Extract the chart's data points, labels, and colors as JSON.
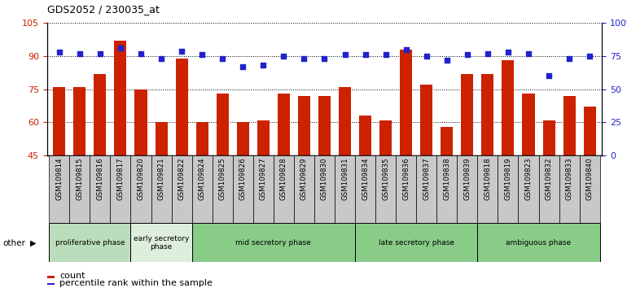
{
  "title": "GDS2052 / 230035_at",
  "samples": [
    "GSM109814",
    "GSM109815",
    "GSM109816",
    "GSM109817",
    "GSM109820",
    "GSM109821",
    "GSM109822",
    "GSM109824",
    "GSM109825",
    "GSM109826",
    "GSM109827",
    "GSM109828",
    "GSM109829",
    "GSM109830",
    "GSM109831",
    "GSM109834",
    "GSM109835",
    "GSM109836",
    "GSM109837",
    "GSM109838",
    "GSM109839",
    "GSM109818",
    "GSM109819",
    "GSM109823",
    "GSM109832",
    "GSM109833",
    "GSM109840"
  ],
  "counts": [
    76,
    76,
    82,
    97,
    75,
    60,
    89,
    60,
    73,
    60,
    61,
    73,
    72,
    72,
    76,
    63,
    61,
    93,
    77,
    58,
    82,
    82,
    88,
    73,
    61,
    72,
    67
  ],
  "percentiles": [
    78,
    77,
    77,
    81,
    77,
    73,
    79,
    76,
    73,
    67,
    68,
    75,
    73,
    73,
    76,
    76,
    76,
    80,
    75,
    72,
    76,
    77,
    78,
    77,
    60,
    73,
    75
  ],
  "phases": [
    {
      "label": "proliferative phase",
      "start": 0,
      "end": 4,
      "color": "#bbddbb"
    },
    {
      "label": "early secretory\nphase",
      "start": 4,
      "end": 7,
      "color": "#ddeedd"
    },
    {
      "label": "mid secretory phase",
      "start": 7,
      "end": 15,
      "color": "#88cc88"
    },
    {
      "label": "late secretory phase",
      "start": 15,
      "end": 21,
      "color": "#88cc88"
    },
    {
      "label": "ambiguous phase",
      "start": 21,
      "end": 27,
      "color": "#88cc88"
    }
  ],
  "bar_color": "#cc2200",
  "dot_color": "#2222cc",
  "ylim_left": [
    45,
    105
  ],
  "ylim_right": [
    0,
    100
  ],
  "yticks_left": [
    45,
    60,
    75,
    90,
    105
  ],
  "yticks_right": [
    0,
    25,
    50,
    75,
    100
  ],
  "ytick_labels_right": [
    "0",
    "25",
    "50",
    "75",
    "100%"
  ],
  "phase_row_color": "#c8c8c8",
  "other_label": "other"
}
